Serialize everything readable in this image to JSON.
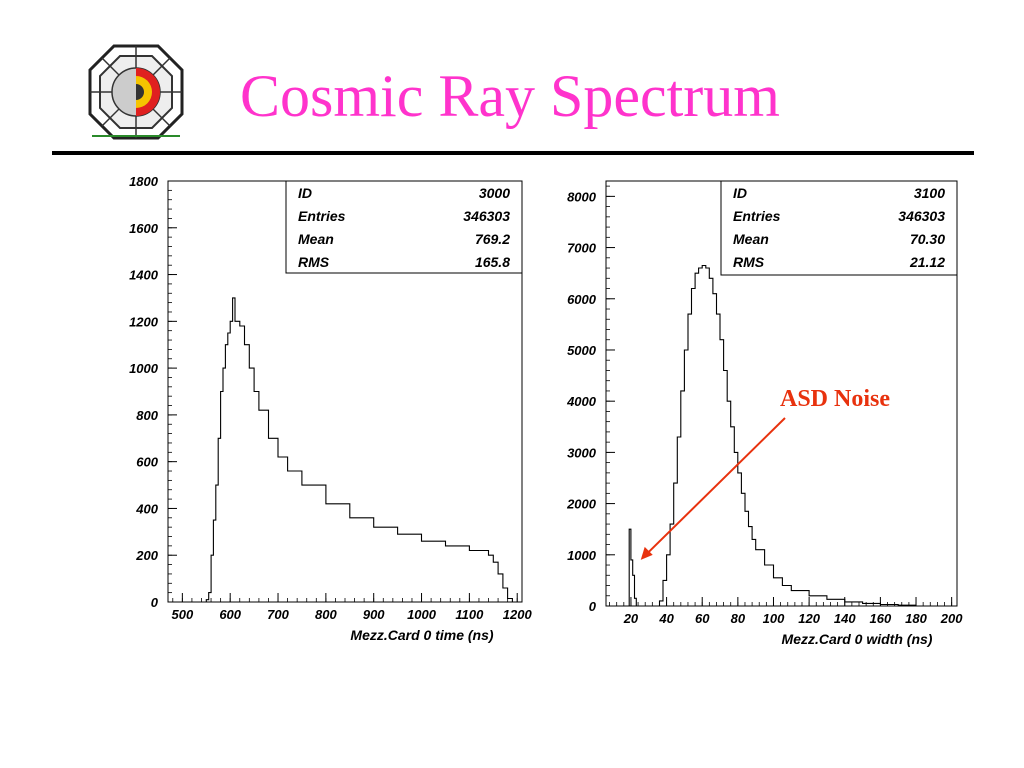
{
  "slide": {
    "title": "Cosmic Ray Spectrum",
    "logo_icon": "detector-cross-section-logo"
  },
  "annotation": {
    "text": "ASD Noise",
    "color": "#e8320e"
  },
  "chart_data": [
    {
      "type": "histogram",
      "xlabel": "Mezz.Card 0 time (ns)",
      "ylabel": "",
      "xlim": [
        470,
        1210
      ],
      "ylim": [
        0,
        1800
      ],
      "xticks": [
        500,
        600,
        700,
        800,
        900,
        1000,
        1100,
        1200
      ],
      "yticks": [
        0,
        200,
        400,
        600,
        800,
        1000,
        1200,
        1400,
        1600,
        1800
      ],
      "stats": [
        {
          "label": "ID",
          "value": "3000"
        },
        {
          "label": "Entries",
          "value": "346303"
        },
        {
          "label": "Mean",
          "value": "769.2"
        },
        {
          "label": "RMS",
          "value": "165.8"
        }
      ],
      "x": [
        540,
        550,
        555,
        560,
        565,
        570,
        575,
        580,
        585,
        590,
        595,
        600,
        605,
        610,
        620,
        630,
        640,
        650,
        660,
        680,
        700,
        720,
        750,
        800,
        850,
        900,
        950,
        1000,
        1050,
        1100,
        1140,
        1150,
        1160,
        1170,
        1180,
        1190
      ],
      "values": [
        0,
        10,
        40,
        200,
        350,
        500,
        700,
        900,
        1000,
        1100,
        1150,
        1200,
        1300,
        1200,
        1180,
        1100,
        1000,
        900,
        820,
        700,
        620,
        560,
        500,
        420,
        360,
        320,
        290,
        260,
        240,
        220,
        200,
        170,
        120,
        60,
        15,
        0
      ]
    },
    {
      "type": "histogram",
      "xlabel": "Mezz.Card 0 width (ns)",
      "ylabel": "",
      "xlim": [
        6,
        203
      ],
      "ylim": [
        0,
        8300
      ],
      "xticks": [
        20,
        40,
        60,
        80,
        100,
        120,
        140,
        160,
        180,
        200
      ],
      "yticks": [
        0,
        1000,
        2000,
        3000,
        4000,
        5000,
        6000,
        7000,
        8000
      ],
      "stats": [
        {
          "label": "ID",
          "value": "3100"
        },
        {
          "label": "Entries",
          "value": "346303"
        },
        {
          "label": "Mean",
          "value": "70.30"
        },
        {
          "label": "RMS",
          "value": "21.12"
        }
      ],
      "x": [
        18,
        19,
        20,
        21,
        22,
        23,
        34,
        36,
        38,
        40,
        42,
        44,
        46,
        48,
        50,
        52,
        54,
        56,
        58,
        60,
        62,
        64,
        66,
        68,
        70,
        72,
        74,
        76,
        78,
        80,
        82,
        84,
        86,
        88,
        90,
        95,
        100,
        105,
        110,
        120,
        130,
        140,
        150,
        160,
        170,
        180
      ],
      "values": [
        0,
        1500,
        900,
        600,
        150,
        0,
        0,
        100,
        500,
        1000,
        1600,
        2400,
        3300,
        4200,
        5000,
        5700,
        6200,
        6500,
        6600,
        6650,
        6600,
        6400,
        6100,
        5700,
        5200,
        4600,
        4000,
        3500,
        3000,
        2600,
        2200,
        1850,
        1550,
        1300,
        1100,
        800,
        550,
        400,
        300,
        200,
        130,
        80,
        50,
        30,
        15,
        0
      ]
    }
  ]
}
